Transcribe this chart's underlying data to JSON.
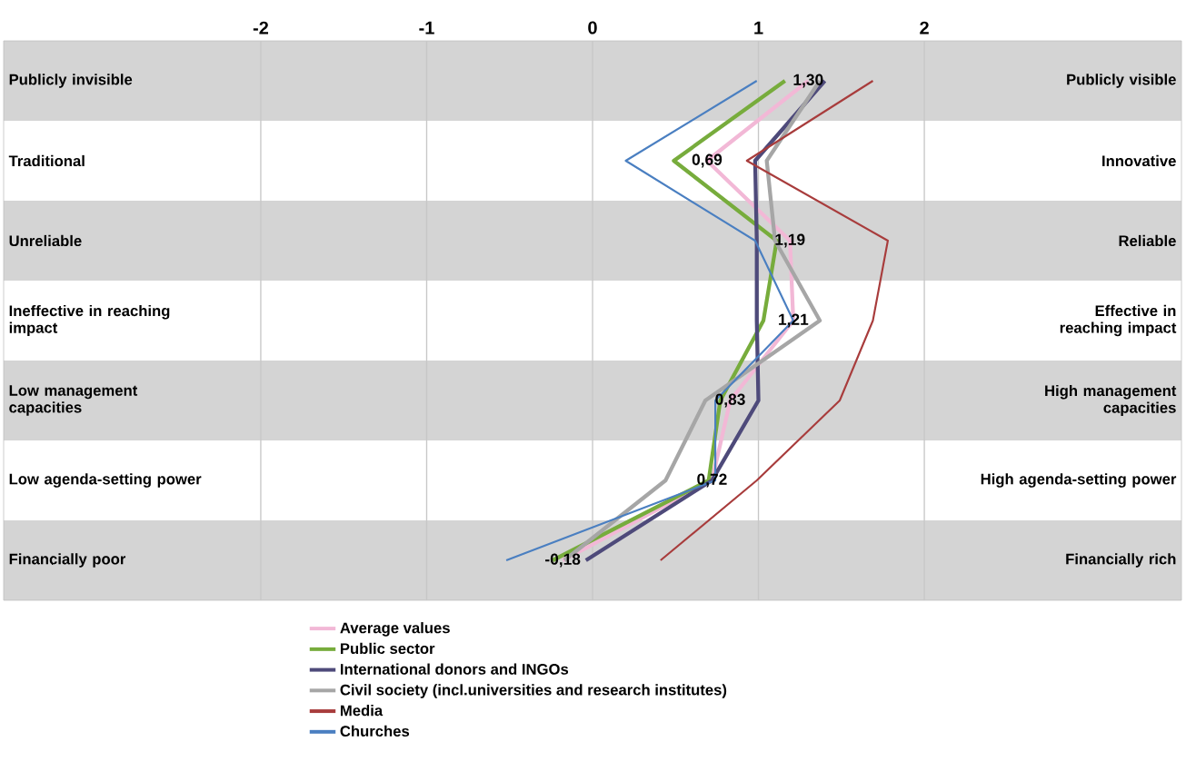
{
  "chart_data": {
    "type": "line",
    "orientation": "horizontal",
    "categories": [
      "Publicly invisible",
      "Traditional",
      "Unreliable",
      "Ineffective in reaching impact",
      "Low management capacities",
      "Low agenda-setting power",
      "Financially poor"
    ],
    "y2_categories": [
      "Publicly visible",
      "Innovative",
      "Reliable",
      "Effective in reaching impact",
      "High management capacities",
      "High agenda-setting power",
      "Financially rich"
    ],
    "xlim": [
      -3.55,
      3.55
    ],
    "xticks": [
      -2,
      -1,
      0,
      1,
      2
    ],
    "grid": "x",
    "legend": "bottom",
    "series": [
      {
        "name": "Average values",
        "color": "#f2b8d6",
        "values": [
          1.3,
          0.69,
          1.19,
          1.21,
          0.83,
          0.72,
          -0.18
        ],
        "value_labels": [
          "1,30",
          "0,69",
          "1,19",
          "1,21",
          "0,83",
          "0,72",
          "-0,18"
        ]
      },
      {
        "name": "Public sector",
        "color": "#77ac3c",
        "values": [
          1.16,
          0.49,
          1.11,
          1.03,
          0.77,
          0.7,
          -0.24
        ]
      },
      {
        "name": "International donors and INGOs",
        "color": "#4e4a7a",
        "values": [
          1.4,
          0.98,
          0.99,
          0.99,
          1.0,
          0.72,
          -0.04
        ]
      },
      {
        "name": "Civil society (incl.universities and research institutes)",
        "color": "#a6a6a6",
        "values": [
          1.37,
          1.05,
          1.1,
          1.37,
          0.68,
          0.44,
          -0.17
        ]
      },
      {
        "name": "Media",
        "color": "#a83c3c",
        "values": [
          1.69,
          0.93,
          1.78,
          1.69,
          1.49,
          0.99,
          0.41
        ]
      },
      {
        "name": "Churches",
        "color": "#4a7fc1",
        "values": [
          0.99,
          0.2,
          0.98,
          1.21,
          0.74,
          0.74,
          -0.52
        ]
      }
    ]
  }
}
